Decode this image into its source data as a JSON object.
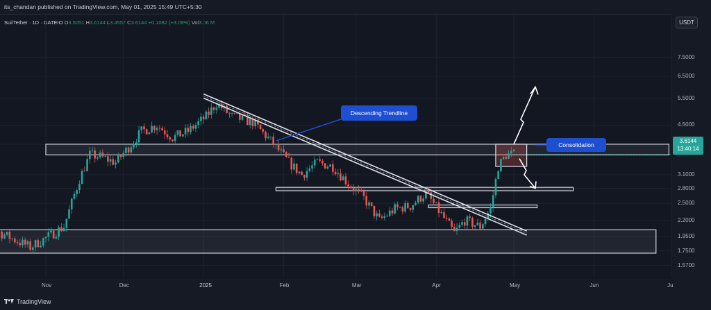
{
  "header": {
    "publisher": "its_chandan published on TradingView.com, May 01, 2025 15:49 UTC+5:30",
    "symbol": "Sui/Tether · 1D · GATEIO",
    "o_label": "O",
    "o_value": "3.5051",
    "h_label": "H",
    "h_value": "3.6144",
    "l_label": "L",
    "l_value": "3.4557",
    "c_label": "C",
    "c_value": "3.6144",
    "change": "+0.1082 (+3.09%)",
    "vol_label": "Vol",
    "vol_value": "3.06 M"
  },
  "currency_button": "USDT",
  "price_badge": {
    "price": "3.6144",
    "countdown": "13:40:14"
  },
  "annotations": {
    "trendline_label": "Descending Trendline",
    "consolidation_label": "Consolidation"
  },
  "footer": {
    "brand": "TradingView"
  },
  "colors": {
    "up": "#26a69a",
    "down": "#ef5350",
    "callout": "#1f4fd1",
    "background": "#131722"
  },
  "chart_data": {
    "type": "candlestick",
    "y_scale": "log",
    "y_ticks": [
      "7.5000",
      "6.5000",
      "5.5000",
      "4.5000",
      "3.9000",
      "3.1000",
      "2.8000",
      "2.5000",
      "2.2000",
      "1.9500",
      "1.7500",
      "1.5700"
    ],
    "x_ticks": [
      "Nov",
      "Dec",
      "2025",
      "Feb",
      "Mar",
      "Apr",
      "May",
      "Jun",
      "Ju"
    ],
    "trendline": {
      "start": [
        "2025-01-01",
        5.6
      ],
      "end": [
        "2025-05-06",
        2.0
      ]
    },
    "zones": [
      {
        "label": "resistance",
        "low": 3.6,
        "high": 3.9,
        "from": "2024-11-01",
        "to": "2025-06-30"
      },
      {
        "label": "support-mid",
        "low": 2.75,
        "high": 2.82,
        "from": "2025-01-29",
        "to": "2025-05-24"
      },
      {
        "label": "support-small",
        "low": 2.42,
        "high": 2.47,
        "from": "2025-03-29",
        "to": "2025-05-10"
      },
      {
        "label": "support-base",
        "low": 1.72,
        "high": 2.05,
        "from": "2024-10-01",
        "to": "2025-06-25"
      },
      {
        "label": "consolidation",
        "low": 3.3,
        "high": 3.9,
        "from": "2025-04-24",
        "to": "2025-05-06"
      }
    ],
    "scenarios": [
      {
        "direction": "up",
        "target": 6.0
      },
      {
        "direction": "down",
        "target": 2.8
      }
    ],
    "last_price": 3.6144
  }
}
